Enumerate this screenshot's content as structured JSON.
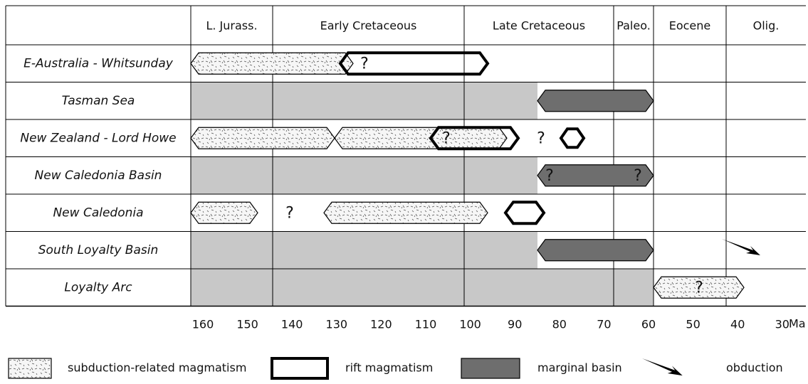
{
  "header": {
    "columns": [
      "L. Jurass.",
      "Early Cretaceous",
      "Late Cretaceous",
      "Paleo.",
      "Eocene",
      "Olig."
    ]
  },
  "rows": [
    "E-Australia - Whitsunday",
    "Tasman Sea",
    "New Zealand - Lord Howe",
    "New Caledonia Basin",
    "New Caledonia",
    "South Loyalty Basin",
    "Loyalty Arc"
  ],
  "question_marks": [
    "?",
    "?",
    "?",
    "?",
    "?",
    "?",
    "?",
    "?"
  ],
  "axis": {
    "ticks": [
      160,
      150,
      140,
      130,
      120,
      110,
      100,
      90,
      80,
      70,
      60,
      50,
      40,
      30
    ],
    "unit": "Ma"
  },
  "legend": [
    "subduction-related magmatism",
    "rift magmatism",
    "marginal basin",
    "obduction"
  ]
}
